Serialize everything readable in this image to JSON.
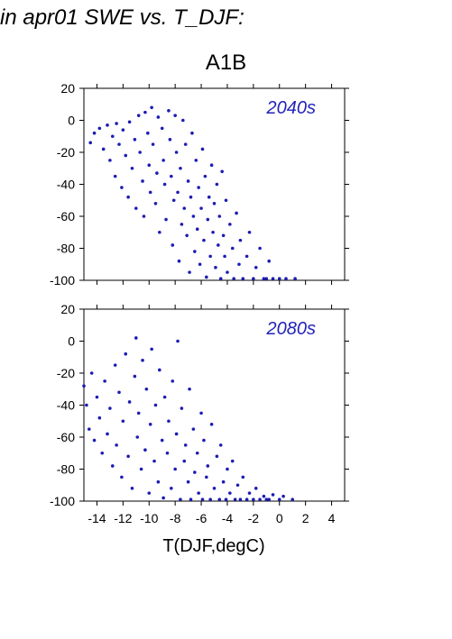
{
  "figure": {
    "title": "in apr01 SWE vs. T_DJF:",
    "scenario": "A1B",
    "xlabel": "T(DJF,degC)"
  },
  "colors": {
    "points": "#1c1cb4",
    "decade_label": "#2222bb"
  },
  "chart_data": [
    {
      "type": "scatter",
      "title": "2040s",
      "xlim": [
        -15,
        5
      ],
      "ylim": [
        -100,
        20
      ],
      "xticks": [
        "-14",
        "-12",
        "-10",
        "-8",
        "-6",
        "-4",
        "-2",
        "0",
        "2",
        "4"
      ],
      "xtick_values": [
        -14,
        -12,
        -10,
        -8,
        -6,
        -4,
        -2,
        0,
        2,
        4
      ],
      "yticks": [
        "20",
        "0",
        "-20",
        "-40",
        "-60",
        "-80",
        "-100"
      ],
      "ytick_values": [
        20,
        0,
        -20,
        -40,
        -60,
        -80,
        -100
      ],
      "show_x_tick_labels": false,
      "points": [
        [
          -14.5,
          -14
        ],
        [
          -14.2,
          -8
        ],
        [
          -13.8,
          -5
        ],
        [
          -13.5,
          -18
        ],
        [
          -13.2,
          -3
        ],
        [
          -13,
          -25
        ],
        [
          -12.8,
          -10
        ],
        [
          -12.6,
          -35
        ],
        [
          -12.5,
          -2
        ],
        [
          -12.3,
          -15
        ],
        [
          -12.1,
          -42
        ],
        [
          -12,
          -6
        ],
        [
          -11.8,
          -22
        ],
        [
          -11.6,
          -48
        ],
        [
          -11.5,
          -1
        ],
        [
          -11.3,
          -30
        ],
        [
          -11.1,
          -12
        ],
        [
          -11,
          -55
        ],
        [
          -10.8,
          3
        ],
        [
          -10.7,
          -20
        ],
        [
          -10.5,
          -38
        ],
        [
          -10.4,
          -60
        ],
        [
          -10.3,
          5
        ],
        [
          -10.1,
          -8
        ],
        [
          -10,
          -28
        ],
        [
          -9.9,
          -45
        ],
        [
          -9.8,
          8
        ],
        [
          -9.7,
          -15
        ],
        [
          -9.5,
          -52
        ],
        [
          -9.4,
          -33
        ],
        [
          -9.3,
          2
        ],
        [
          -9.2,
          -70
        ],
        [
          -9,
          -5
        ],
        [
          -8.9,
          -25
        ],
        [
          -8.8,
          -40
        ],
        [
          -8.7,
          -62
        ],
        [
          -8.5,
          6
        ],
        [
          -8.4,
          -12
        ],
        [
          -8.3,
          -35
        ],
        [
          -8.2,
          -78
        ],
        [
          -8.1,
          -50
        ],
        [
          -8,
          3
        ],
        [
          -7.9,
          -20
        ],
        [
          -7.8,
          -45
        ],
        [
          -7.7,
          -88
        ],
        [
          -7.6,
          -30
        ],
        [
          -7.5,
          -65
        ],
        [
          -7.4,
          0
        ],
        [
          -7.3,
          -55
        ],
        [
          -7.2,
          -15
        ],
        [
          -7.1,
          -72
        ],
        [
          -7,
          -38
        ],
        [
          -6.9,
          -95
        ],
        [
          -6.8,
          -48
        ],
        [
          -6.7,
          -8
        ],
        [
          -6.6,
          -60
        ],
        [
          -6.5,
          -82
        ],
        [
          -6.4,
          -25
        ],
        [
          -6.3,
          -68
        ],
        [
          -6.2,
          -42
        ],
        [
          -6.1,
          -90
        ],
        [
          -6,
          -55
        ],
        [
          -5.9,
          -18
        ],
        [
          -5.8,
          -75
        ],
        [
          -5.7,
          -35
        ],
        [
          -5.6,
          -98
        ],
        [
          -5.5,
          -62
        ],
        [
          -5.4,
          -48
        ],
        [
          -5.3,
          -85
        ],
        [
          -5.2,
          -28
        ],
        [
          -5.1,
          -70
        ],
        [
          -5,
          -52
        ],
        [
          -4.9,
          -92
        ],
        [
          -4.8,
          -40
        ],
        [
          -4.7,
          -78
        ],
        [
          -4.6,
          -60
        ],
        [
          -4.5,
          -99
        ],
        [
          -4.4,
          -32
        ],
        [
          -4.3,
          -72
        ],
        [
          -4.2,
          -85
        ],
        [
          -4.1,
          -50
        ],
        [
          -4,
          -95
        ],
        [
          -3.8,
          -65
        ],
        [
          -3.6,
          -80
        ],
        [
          -3.5,
          -99
        ],
        [
          -3.3,
          -58
        ],
        [
          -3.1,
          -90
        ],
        [
          -3,
          -75
        ],
        [
          -2.8,
          -99
        ],
        [
          -2.5,
          -85
        ],
        [
          -2.3,
          -70
        ],
        [
          -2,
          -99
        ],
        [
          -1.8,
          -92
        ],
        [
          -1.5,
          -80
        ],
        [
          -1.2,
          -99
        ],
        [
          -1,
          -99
        ],
        [
          -0.8,
          -88
        ],
        [
          -0.5,
          -99
        ],
        [
          0,
          -99
        ],
        [
          0.5,
          -99
        ],
        [
          1.2,
          -99
        ]
      ]
    },
    {
      "type": "scatter",
      "title": "2080s",
      "xlim": [
        -15,
        5
      ],
      "ylim": [
        -100,
        20
      ],
      "xticks": [
        "-14",
        "-12",
        "-10",
        "-8",
        "-6",
        "-4",
        "-2",
        "0",
        "2",
        "4"
      ],
      "xtick_values": [
        -14,
        -12,
        -10,
        -8,
        -6,
        -4,
        -2,
        0,
        2,
        4
      ],
      "yticks": [
        "20",
        "0",
        "-20",
        "-40",
        "-60",
        "-80",
        "-100"
      ],
      "ytick_values": [
        20,
        0,
        -20,
        -40,
        -60,
        -80,
        -100
      ],
      "show_x_tick_labels": true,
      "points": [
        [
          -15,
          -28
        ],
        [
          -14.8,
          -40
        ],
        [
          -14.6,
          -55
        ],
        [
          -14.4,
          -20
        ],
        [
          -14.2,
          -62
        ],
        [
          -14,
          -35
        ],
        [
          -13.8,
          -48
        ],
        [
          -13.6,
          -70
        ],
        [
          -13.4,
          -25
        ],
        [
          -13.2,
          -58
        ],
        [
          -13,
          -42
        ],
        [
          -12.8,
          -78
        ],
        [
          -12.6,
          -15
        ],
        [
          -12.5,
          -65
        ],
        [
          -12.3,
          -32
        ],
        [
          -12.1,
          -85
        ],
        [
          -12,
          -50
        ],
        [
          -11.8,
          -8
        ],
        [
          -11.6,
          -72
        ],
        [
          -11.5,
          -38
        ],
        [
          -11.3,
          -92
        ],
        [
          -11.1,
          -22
        ],
        [
          -11,
          2
        ],
        [
          -10.9,
          -60
        ],
        [
          -10.8,
          -45
        ],
        [
          -10.6,
          -80
        ],
        [
          -10.5,
          -12
        ],
        [
          -10.3,
          -68
        ],
        [
          -10.2,
          -30
        ],
        [
          -10,
          -95
        ],
        [
          -9.9,
          -52
        ],
        [
          -9.8,
          -5
        ],
        [
          -9.6,
          -75
        ],
        [
          -9.5,
          -40
        ],
        [
          -9.3,
          -88
        ],
        [
          -9.2,
          -18
        ],
        [
          -9,
          -62
        ],
        [
          -8.9,
          -98
        ],
        [
          -8.8,
          -35
        ],
        [
          -8.6,
          -70
        ],
        [
          -8.5,
          -50
        ],
        [
          -8.3,
          -92
        ],
        [
          -8.2,
          -25
        ],
        [
          -8,
          -80
        ],
        [
          -7.9,
          -58
        ],
        [
          -7.8,
          0
        ],
        [
          -7.6,
          -99
        ],
        [
          -7.5,
          -42
        ],
        [
          -7.3,
          -75
        ],
        [
          -7.2,
          -65
        ],
        [
          -7,
          -88
        ],
        [
          -6.9,
          -30
        ],
        [
          -6.8,
          -99
        ],
        [
          -6.6,
          -55
        ],
        [
          -6.5,
          -82
        ],
        [
          -6.3,
          -70
        ],
        [
          -6.2,
          -95
        ],
        [
          -6,
          -45
        ],
        [
          -5.9,
          -99
        ],
        [
          -5.8,
          -62
        ],
        [
          -5.6,
          -85
        ],
        [
          -5.5,
          -78
        ],
        [
          -5.3,
          -99
        ],
        [
          -5.2,
          -52
        ],
        [
          -5,
          -92
        ],
        [
          -4.8,
          -72
        ],
        [
          -4.6,
          -99
        ],
        [
          -4.5,
          -65
        ],
        [
          -4.3,
          -88
        ],
        [
          -4.1,
          -99
        ],
        [
          -4,
          -80
        ],
        [
          -3.8,
          -95
        ],
        [
          -3.6,
          -75
        ],
        [
          -3.4,
          -99
        ],
        [
          -3.2,
          -90
        ],
        [
          -3,
          -99
        ],
        [
          -2.8,
          -85
        ],
        [
          -2.5,
          -99
        ],
        [
          -2.3,
          -95
        ],
        [
          -2,
          -99
        ],
        [
          -1.8,
          -92
        ],
        [
          -1.5,
          -99
        ],
        [
          -1.2,
          -97
        ],
        [
          -1,
          -99
        ],
        [
          -0.8,
          -99
        ],
        [
          -0.5,
          -96
        ],
        [
          0,
          -99
        ],
        [
          0.3,
          -97
        ],
        [
          1,
          -99
        ]
      ]
    }
  ]
}
